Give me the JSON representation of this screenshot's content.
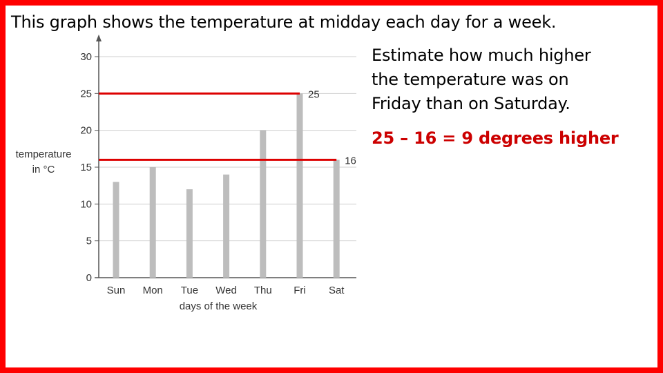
{
  "slide": {
    "title": "This graph shows the temperature at midday each day for a week.",
    "question_lines": [
      "Estimate how much higher",
      "the temperature was on",
      "Friday than on Saturday."
    ],
    "answer": "25 – 16 =  9 degrees higher"
  },
  "colors": {
    "border": "#ff0000",
    "bars": "#bdbdbd",
    "reference_lines": "#dd0000",
    "answer": "#cc0000"
  },
  "chart_data": {
    "type": "bar",
    "categories": [
      "Sun",
      "Mon",
      "Tue",
      "Wed",
      "Thu",
      "Fri",
      "Sat"
    ],
    "values": [
      13,
      15,
      12,
      14,
      20,
      25,
      16
    ],
    "xlabel": "days of the week",
    "ylabel_lines": [
      "temperature",
      "in °C"
    ],
    "ylim": [
      0,
      30
    ],
    "yticks": [
      0,
      5,
      10,
      15,
      20,
      25,
      30
    ],
    "grid": true,
    "reference_lines": [
      {
        "value": 25,
        "label": "25"
      },
      {
        "value": 16,
        "label": "16"
      }
    ]
  }
}
